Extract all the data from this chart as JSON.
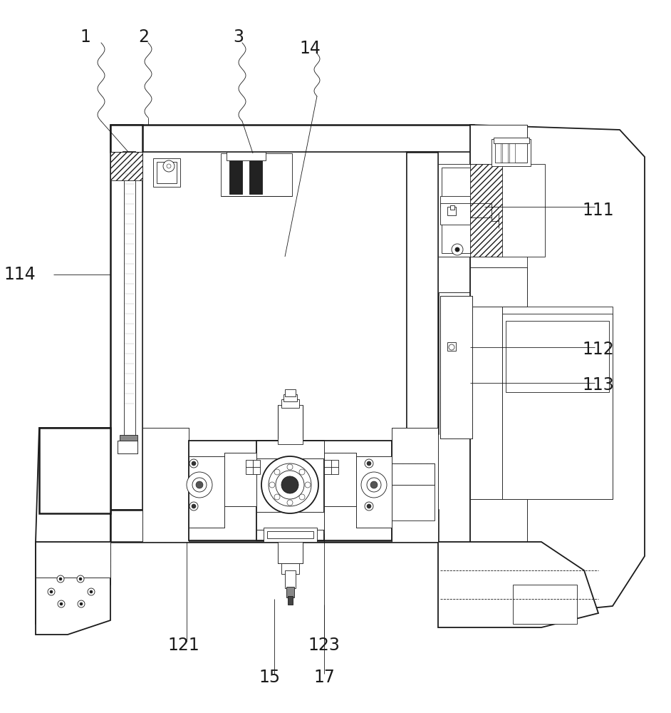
{
  "background_color": "#ffffff",
  "line_color": "#1a1a1a",
  "labels": [
    [
      "1",
      120,
      52
    ],
    [
      "2",
      202,
      52
    ],
    [
      "3",
      335,
      52
    ],
    [
      "14",
      435,
      68
    ],
    [
      "111",
      840,
      295
    ],
    [
      "112",
      840,
      490
    ],
    [
      "113",
      840,
      540
    ],
    [
      "114",
      28,
      385
    ],
    [
      "121",
      258,
      905
    ],
    [
      "123",
      455,
      905
    ],
    [
      "15",
      378,
      950
    ],
    [
      "17",
      455,
      950
    ]
  ],
  "lw_main": 1.3,
  "lw_thick": 1.8,
  "lw_thin": 0.6,
  "font_size": 17
}
